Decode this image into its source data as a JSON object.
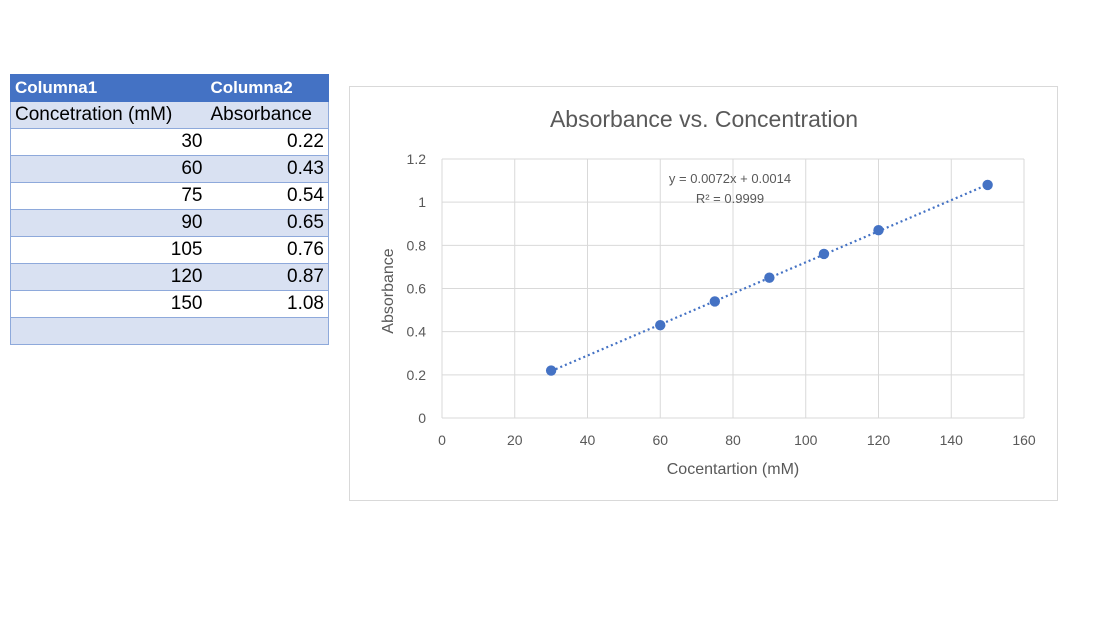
{
  "table": {
    "headers": [
      "Columna1",
      "Columna2"
    ],
    "subheaders": [
      "Concetration (mM)",
      "Absorbance"
    ],
    "rows": [
      [
        "30",
        "0.22"
      ],
      [
        "60",
        "0.43"
      ],
      [
        "75",
        "0.54"
      ],
      [
        "90",
        "0.65"
      ],
      [
        "105",
        "0.76"
      ],
      [
        "120",
        "0.87"
      ],
      [
        "150",
        "1.08"
      ],
      [
        "",
        ""
      ]
    ]
  },
  "chart_data": {
    "type": "scatter",
    "title": "Absorbance vs. Concentration",
    "xlabel": "Cocentartion (mM)",
    "ylabel": "Absorbance",
    "xlim": [
      0,
      160
    ],
    "ylim": [
      0,
      1.2
    ],
    "xticks": [
      "0",
      "20",
      "40",
      "60",
      "80",
      "100",
      "120",
      "140",
      "160"
    ],
    "yticks": [
      "0",
      "0.2",
      "0.4",
      "0.6",
      "0.8",
      "1",
      "1.2"
    ],
    "grid": true,
    "legend": "none",
    "x": [
      30,
      60,
      75,
      90,
      105,
      120,
      150
    ],
    "y": [
      0.22,
      0.43,
      0.54,
      0.65,
      0.76,
      0.87,
      1.08
    ],
    "trendline": {
      "slope": 0.0072,
      "intercept": 0.0014,
      "equation": "y = 0.0072x + 0.0014",
      "r2": "R² = 0.9999"
    },
    "colors": {
      "marker": "#4472c4",
      "grid": "#d9d9d9",
      "text": "#595959"
    }
  }
}
